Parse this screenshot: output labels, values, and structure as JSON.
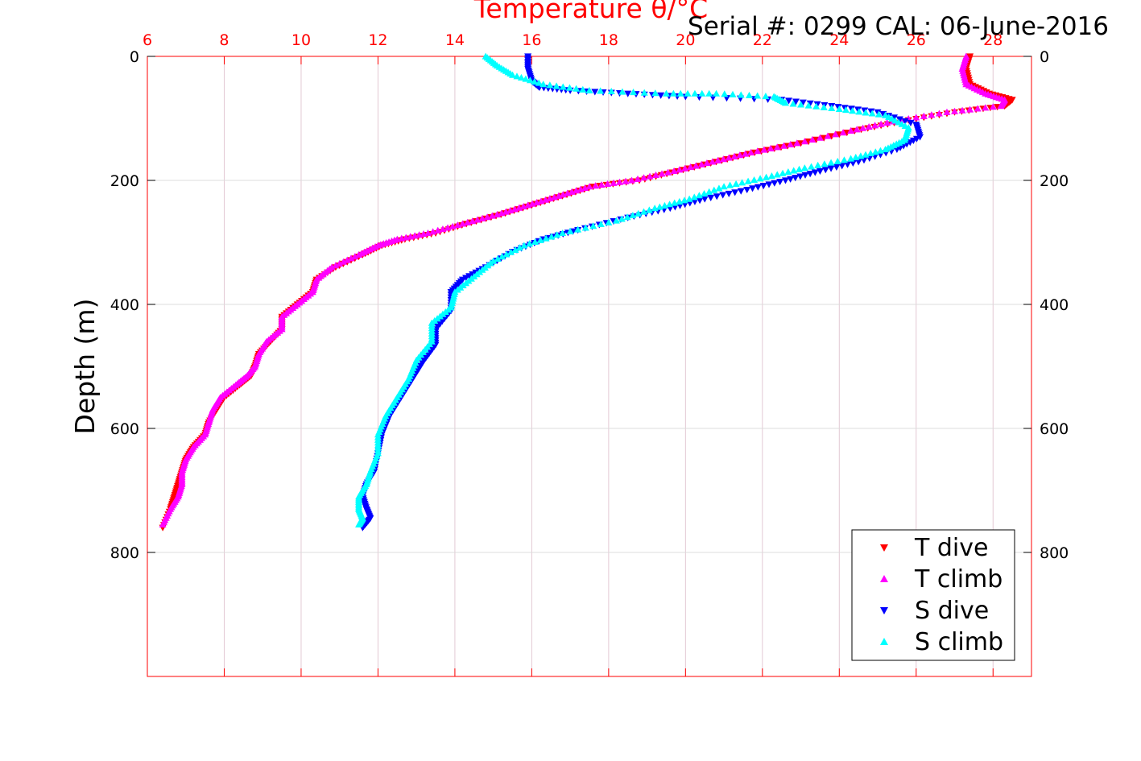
{
  "serial_text": "Serial #: 0299 CAL: 06-June-2016",
  "chart_data": {
    "type": "scatter",
    "title": "Temperature θ/°C",
    "xlabel": "Temperature θ/°C",
    "ylabel": "Depth (m)",
    "xlim": [
      6,
      29
    ],
    "ylim": [
      0,
      1000
    ],
    "y_reversed": true,
    "x_ticks": [
      "6",
      "8",
      "10",
      "12",
      "14",
      "16",
      "18",
      "20",
      "22",
      "24",
      "26",
      "28"
    ],
    "y_ticks_left": [
      "0",
      "200",
      "400",
      "600",
      "800"
    ],
    "y_ticks_right": [
      "0",
      "200",
      "400",
      "600",
      "800"
    ],
    "grid": true,
    "legend_position": "bottom-right",
    "colors": {
      "axis_top": "#ff0000",
      "grid": "#d9d9d9"
    },
    "series": [
      {
        "name": "T dive",
        "color": "#ff0000",
        "marker": "triangle-down",
        "x": [
          27.4,
          27.3,
          27.4,
          27.9,
          28.5,
          28.3,
          27.0,
          25.6,
          24.4,
          23.0,
          21.8,
          20.8,
          19.8,
          18.8,
          17.6,
          16.8,
          16.0,
          15.2,
          14.3,
          13.5,
          12.7,
          12.1,
          11.6,
          10.9,
          10.4,
          10.3,
          9.9,
          9.5,
          9.5,
          9.2,
          8.9,
          8.8,
          8.7,
          8.4,
          8.0,
          7.8,
          7.6,
          7.5,
          7.2,
          7.0,
          6.9,
          6.8,
          6.7,
          6.6,
          6.4
        ],
        "y": [
          0,
          20,
          45,
          60,
          70,
          80,
          90,
          105,
          120,
          140,
          155,
          170,
          185,
          200,
          210,
          225,
          240,
          255,
          270,
          285,
          295,
          305,
          320,
          340,
          360,
          380,
          400,
          420,
          440,
          460,
          480,
          500,
          515,
          530,
          550,
          570,
          590,
          610,
          630,
          650,
          670,
          690,
          710,
          730,
          760
        ]
      },
      {
        "name": "T climb",
        "color": "#ff00ff",
        "marker": "triangle-up",
        "x": [
          27.3,
          27.2,
          27.3,
          27.8,
          28.3,
          28.2,
          26.8,
          25.4,
          24.3,
          22.9,
          21.7,
          20.7,
          19.7,
          18.6,
          17.5,
          16.7,
          15.9,
          15.1,
          14.2,
          13.3,
          12.5,
          12.0,
          11.5,
          10.8,
          10.4,
          10.3,
          9.9,
          9.5,
          9.5,
          9.1,
          8.9,
          8.8,
          8.6,
          8.3,
          7.9,
          7.7,
          7.6,
          7.5,
          7.2,
          7.0,
          6.9,
          6.9,
          6.8,
          6.6,
          6.4
        ],
        "y": [
          0,
          20,
          45,
          60,
          70,
          80,
          90,
          105,
          120,
          140,
          155,
          170,
          185,
          200,
          210,
          225,
          240,
          255,
          270,
          285,
          295,
          305,
          320,
          340,
          360,
          380,
          400,
          420,
          440,
          460,
          480,
          500,
          515,
          530,
          550,
          570,
          590,
          610,
          630,
          650,
          670,
          690,
          710,
          730,
          755
        ]
      },
      {
        "name": "S dive",
        "color": "#0000ff",
        "marker": "triangle-down",
        "x": [
          15.9,
          15.9,
          16.0,
          16.2,
          17.0,
          18.5,
          20.0,
          22.5,
          23.8,
          25.0,
          26.0,
          26.1,
          25.5,
          24.5,
          23.5,
          22.6,
          21.6,
          20.5,
          19.6,
          18.5,
          17.2,
          16.3,
          15.5,
          14.8,
          14.2,
          13.9,
          13.9,
          13.5,
          13.5,
          13.2,
          12.9,
          12.6,
          12.3,
          12.1,
          12.0,
          11.9,
          11.7,
          11.6,
          11.7,
          11.8,
          11.6
        ],
        "y": [
          0,
          20,
          40,
          50,
          55,
          60,
          65,
          70,
          80,
          90,
          110,
          130,
          150,
          170,
          185,
          200,
          215,
          230,
          245,
          260,
          280,
          295,
          315,
          340,
          360,
          380,
          410,
          440,
          465,
          490,
          520,
          550,
          580,
          610,
          640,
          670,
          690,
          710,
          730,
          745,
          760
        ]
      },
      {
        "name": "S climb",
        "color": "#00ffff",
        "marker": "triangle-up",
        "x": [
          14.8,
          15.1,
          15.5,
          16.3,
          17.5,
          19.5,
          20.8,
          22.3,
          22.6,
          24.0,
          25.2,
          25.8,
          25.7,
          25.2,
          24.3,
          23.1,
          22.1,
          21.0,
          20.1,
          19.2,
          18.2,
          16.8,
          15.8,
          15.0,
          14.5,
          14.0,
          13.9,
          13.4,
          13.4,
          13.0,
          12.8,
          12.5,
          12.2,
          12.0,
          12.0,
          11.8,
          11.7,
          11.5,
          11.5,
          11.6,
          11.5
        ],
        "y": [
          0,
          15,
          30,
          45,
          55,
          60,
          60,
          65,
          75,
          85,
          95,
          115,
          135,
          150,
          165,
          180,
          195,
          210,
          230,
          245,
          265,
          285,
          305,
          330,
          355,
          380,
          405,
          430,
          460,
          490,
          520,
          550,
          580,
          610,
          640,
          670,
          690,
          710,
          730,
          745,
          755
        ]
      }
    ]
  }
}
